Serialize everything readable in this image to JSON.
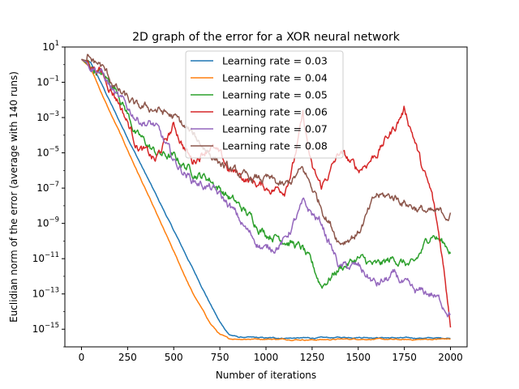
{
  "chart_data": {
    "type": "line",
    "title": "2D graph of the error for a XOR neural network",
    "xlabel": "Number of iterations",
    "ylabel": "Euclidian norm of the error (average with 140 runs)",
    "xlim": [
      -90,
      2090
    ],
    "ylim_log10": [
      -16,
      1
    ],
    "yscale": "log",
    "grid": false,
    "legend_position": "top-center",
    "x_ticks": [
      {
        "value": 0,
        "label": "0"
      },
      {
        "value": 250,
        "label": "250"
      },
      {
        "value": 500,
        "label": "500"
      },
      {
        "value": 750,
        "label": "750"
      },
      {
        "value": 1000,
        "label": "1000"
      },
      {
        "value": 1250,
        "label": "1250"
      },
      {
        "value": 1500,
        "label": "1500"
      },
      {
        "value": 1750,
        "label": "1750"
      },
      {
        "value": 2000,
        "label": "2000"
      }
    ],
    "y_ticks": [
      {
        "value": 1,
        "base": "10",
        "exp": "1"
      },
      {
        "value": -1,
        "base": "10",
        "exp": "−1"
      },
      {
        "value": -3,
        "base": "10",
        "exp": "−3"
      },
      {
        "value": -5,
        "base": "10",
        "exp": "−5"
      },
      {
        "value": -7,
        "base": "10",
        "exp": "−7"
      },
      {
        "value": -9,
        "base": "10",
        "exp": "−9"
      },
      {
        "value": -11,
        "base": "10",
        "exp": "−11"
      },
      {
        "value": -13,
        "base": "10",
        "exp": "−13"
      },
      {
        "value": -15,
        "base": "10",
        "exp": "−15"
      }
    ],
    "series_value_scale": "log10 of error",
    "series": [
      {
        "name": "Learning rate = 0.03",
        "color": "#1f77b4",
        "x": [
          0,
          50,
          100,
          150,
          200,
          300,
          400,
          500,
          600,
          700,
          750,
          800,
          850,
          1000,
          1250,
          1500,
          1750,
          2000
        ],
        "log10_y": [
          0.3,
          0.1,
          -0.9,
          -2.0,
          -3.1,
          -5.2,
          -7.3,
          -9.4,
          -11.5,
          -13.6,
          -14.6,
          -15.3,
          -15.45,
          -15.5,
          -15.5,
          -15.45,
          -15.5,
          -15.5
        ]
      },
      {
        "name": "Learning rate = 0.04",
        "color": "#ff7f0e",
        "x": [
          0,
          50,
          100,
          150,
          200,
          300,
          400,
          500,
          600,
          700,
          750,
          780,
          800,
          1000,
          1250,
          1500,
          1750,
          2000
        ],
        "log10_y": [
          0.3,
          -0.2,
          -1.4,
          -2.6,
          -3.7,
          -6.0,
          -8.3,
          -10.6,
          -12.9,
          -14.7,
          -15.3,
          -15.45,
          -15.55,
          -15.55,
          -15.6,
          -15.55,
          -15.6,
          -15.55
        ]
      },
      {
        "name": "Learning rate = 0.05",
        "color": "#2ca02c",
        "x": [
          0,
          100,
          200,
          300,
          400,
          500,
          600,
          700,
          800,
          900,
          1000,
          1100,
          1200,
          1300,
          1400,
          1500,
          1600,
          1700,
          1800,
          1900,
          2000
        ],
        "log10_y": [
          0.3,
          -0.5,
          -1.5,
          -4.0,
          -5.0,
          -5.3,
          -6.0,
          -6.5,
          -7.5,
          -8.5,
          -9.5,
          -9.8,
          -10.5,
          -12.5,
          -11.5,
          -11.0,
          -11.5,
          -11.0,
          -11.5,
          -9.5,
          -10.5
        ]
      },
      {
        "name": "Learning rate = 0.06",
        "color": "#d62728",
        "x": [
          0,
          100,
          200,
          300,
          400,
          500,
          600,
          700,
          800,
          900,
          1000,
          1100,
          1150,
          1200,
          1250,
          1300,
          1400,
          1500,
          1600,
          1700,
          1750,
          1800,
          1850,
          1900,
          1950,
          2000
        ],
        "log10_y": [
          0.3,
          -0.3,
          -2.0,
          -4.5,
          -5.5,
          -3.5,
          -5.5,
          -4.5,
          -6.0,
          -6.5,
          -7.0,
          -7.0,
          -5.5,
          -3.0,
          -6.0,
          -7.0,
          -5.0,
          -6.0,
          -5.0,
          -3.5,
          -2.5,
          -4.0,
          -6.0,
          -7.5,
          -10.5,
          -14.5
        ]
      },
      {
        "name": "Learning rate = 0.07",
        "color": "#9467bd",
        "x": [
          0,
          100,
          200,
          300,
          400,
          500,
          600,
          700,
          800,
          900,
          1000,
          1100,
          1200,
          1300,
          1400,
          1500,
          1600,
          1700,
          1800,
          1900,
          2000
        ],
        "log10_y": [
          0.3,
          -0.3,
          -2.0,
          -3.0,
          -3.5,
          -5.5,
          -6.5,
          -7.0,
          -8.0,
          -9.5,
          -10.5,
          -10.0,
          -8.0,
          -9.0,
          -11.5,
          -11.5,
          -12.5,
          -12.0,
          -13.0,
          -13.0,
          -14.0
        ]
      },
      {
        "name": "Learning rate = 0.08",
        "color": "#8c564b",
        "x": [
          0,
          100,
          200,
          300,
          400,
          500,
          600,
          700,
          800,
          900,
          1000,
          1100,
          1200,
          1300,
          1400,
          1500,
          1600,
          1700,
          1800,
          1900,
          2000
        ],
        "log10_y": [
          0.3,
          0.0,
          -1.5,
          -2.5,
          -2.5,
          -3.0,
          -4.0,
          -5.0,
          -6.0,
          -6.5,
          -6.5,
          -7.0,
          -6.0,
          -8.0,
          -10.0,
          -9.5,
          -7.5,
          -7.5,
          -8.0,
          -8.5,
          -8.5
        ]
      }
    ]
  }
}
